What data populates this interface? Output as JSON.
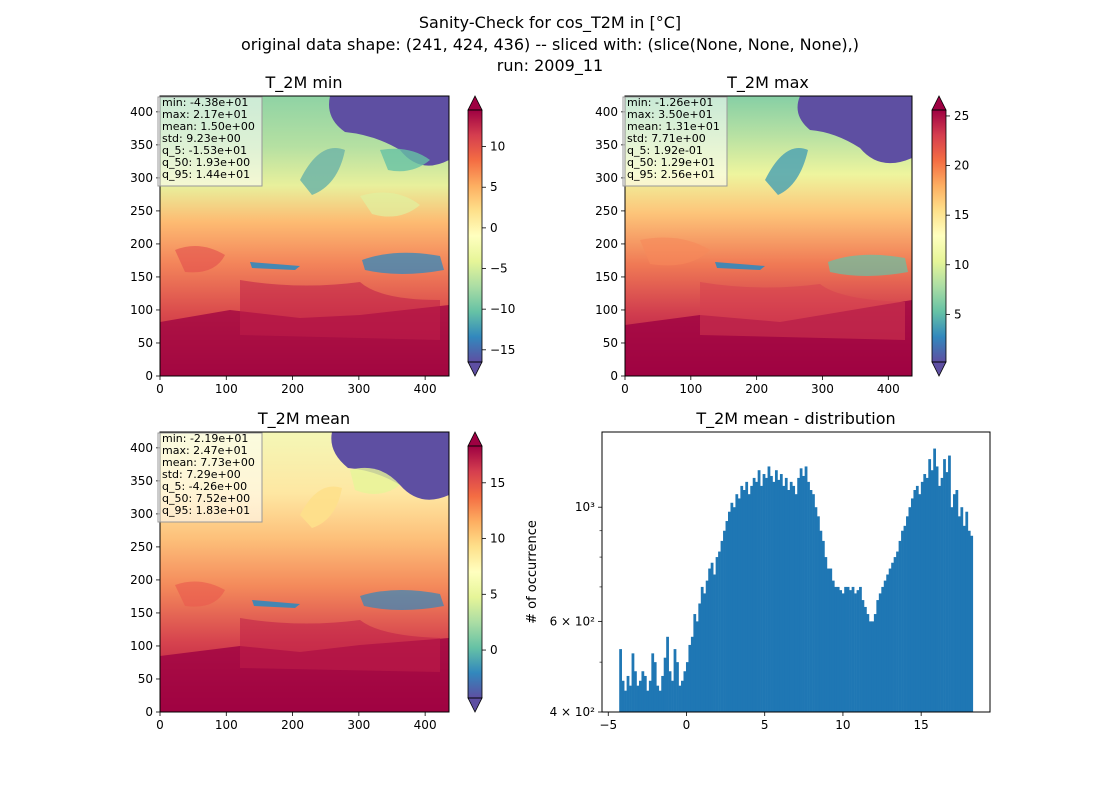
{
  "figure": {
    "title_lines": [
      "Sanity-Check for cos_T2M in [°C]",
      "original data shape: (241, 424, 436) -- sliced with: (slice(None, None, None),)",
      "run: 2009_11"
    ]
  },
  "chart_data": [
    {
      "type": "heatmap",
      "title": "T_2M min",
      "xlim": [
        0,
        436
      ],
      "ylim": [
        0,
        424
      ],
      "xticks": [
        0,
        100,
        200,
        300,
        400
      ],
      "yticks": [
        0,
        50,
        100,
        150,
        200,
        250,
        300,
        350,
        400
      ],
      "colormap": "Spectral_r",
      "colorbar": {
        "range": [
          -16.5,
          14.5
        ],
        "ticks": [
          10,
          5,
          0,
          -5,
          -10,
          -15
        ],
        "extend": "both"
      },
      "stats_box": [
        "min: -4.38e+01",
        "max: 2.17e+01",
        "mean: 1.50e+00",
        "std: 9.23e+00",
        "q_5: -1.53e+01",
        "q_50: 1.93e+00",
        "q_95: 1.44e+01"
      ],
      "colors": {
        "hot": "#9e0142",
        "cold": "#5e4fa2"
      }
    },
    {
      "type": "heatmap",
      "title": "T_2M max",
      "xlim": [
        0,
        436
      ],
      "ylim": [
        0,
        424
      ],
      "xticks": [
        0,
        100,
        200,
        300,
        400
      ],
      "yticks": [
        0,
        50,
        100,
        150,
        200,
        250,
        300,
        350,
        400
      ],
      "colormap": "Spectral_r",
      "colorbar": {
        "range": [
          0.2,
          25.6
        ],
        "ticks": [
          25,
          20,
          15,
          10,
          5
        ],
        "extend": "both"
      },
      "stats_box": [
        "min: -1.26e+01",
        "max: 3.50e+01",
        "mean: 1.31e+01",
        "std: 7.71e+00",
        "q_5: 1.92e-01",
        "q_50: 1.29e+01",
        "q_95: 2.56e+01"
      ],
      "colors": {
        "hot": "#9e0142",
        "cold": "#5e4fa2"
      }
    },
    {
      "type": "heatmap",
      "title": "T_2M mean",
      "xlim": [
        0,
        436
      ],
      "ylim": [
        0,
        424
      ],
      "xticks": [
        0,
        100,
        200,
        300,
        400
      ],
      "yticks": [
        0,
        50,
        100,
        150,
        200,
        250,
        300,
        350,
        400
      ],
      "colormap": "Spectral_r",
      "colorbar": {
        "range": [
          -4.3,
          18.3
        ],
        "ticks": [
          15,
          10,
          5,
          0
        ],
        "extend": "both"
      },
      "stats_box": [
        "min: -2.19e+01",
        "max: 2.47e+01",
        "mean: 7.73e+00",
        "std: 7.29e+00",
        "q_5: -4.26e+00",
        "q_50: 7.52e+00",
        "q_95: 1.83e+01"
      ],
      "colors": {
        "hot": "#9e0142",
        "cold": "#5e4fa2"
      }
    },
    {
      "type": "bar",
      "title": "T_2M mean - distribution",
      "ylabel": "# of occurrence",
      "yscale": "log",
      "xlim": [
        -5.4,
        19.4
      ],
      "ylim": [
        400,
        1400
      ],
      "xticks": [
        -5,
        0,
        5,
        10,
        15
      ],
      "yticks": [
        {
          "value": 400,
          "label": "4 × 10²"
        },
        {
          "value": 600,
          "label": "6 × 10²"
        },
        {
          "value": 1000,
          "label": "10³"
        }
      ],
      "bin_range": [
        -4.3,
        18.3
      ],
      "bar_color": "#1f77b4",
      "values": [
        530,
        460,
        440,
        470,
        450,
        520,
        480,
        450,
        460,
        480,
        470,
        440,
        460,
        520,
        500,
        450,
        440,
        470,
        510,
        560,
        480,
        460,
        530,
        500,
        450,
        460,
        480,
        500,
        540,
        560,
        620,
        600,
        650,
        700,
        680,
        720,
        760,
        780,
        740,
        800,
        820,
        860,
        900,
        940,
        980,
        1020,
        1000,
        1060,
        1040,
        1100,
        1080,
        1120,
        1060,
        1100,
        1140,
        1120,
        1180,
        1100,
        1160,
        1140,
        1200,
        1150,
        1120,
        1180,
        1130,
        1160,
        1100,
        1140,
        1080,
        1120,
        1100,
        1060,
        1140,
        1190,
        1150,
        1200,
        1120,
        1080,
        1060,
        1000,
        960,
        900,
        860,
        800,
        760,
        760,
        720,
        700,
        700,
        690,
        680,
        700,
        700,
        690,
        700,
        680,
        690,
        700,
        660,
        640,
        620,
        600,
        600,
        620,
        660,
        680,
        700,
        720,
        740,
        760,
        780,
        800,
        820,
        860,
        900,
        920,
        960,
        1000,
        1040,
        1080,
        1100,
        1060,
        1120,
        1160,
        1140,
        1240,
        1180,
        1300,
        1200,
        1100,
        1140,
        1240,
        1170,
        1260,
        1000,
        1060,
        1080,
        960,
        1000,
        920,
        980,
        900,
        880
      ]
    }
  ]
}
